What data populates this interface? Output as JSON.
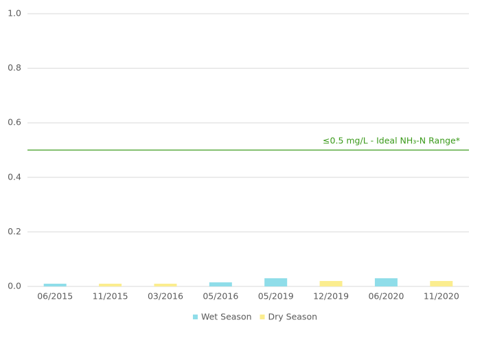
{
  "chart_data": {
    "type": "bar",
    "categories": [
      "06/2015",
      "11/2015",
      "03/2016",
      "05/2016",
      "05/2019",
      "12/2019",
      "06/2020",
      "11/2020"
    ],
    "series": [
      {
        "name": "Wet Season",
        "color": "#8fdde9",
        "values": [
          0.01,
          null,
          null,
          0.015,
          0.03,
          null,
          0.03,
          null
        ]
      },
      {
        "name": "Dry Season",
        "color": "#fbed8f",
        "values": [
          null,
          0.01,
          0.01,
          null,
          null,
          0.02,
          null,
          0.02
        ]
      }
    ],
    "ylim": [
      0,
      1
    ],
    "yticks": [
      {
        "value": 0,
        "label": "0.0"
      },
      0.2,
      0.4,
      0.6,
      0.8,
      {
        "value": 1,
        "label": "1.0"
      }
    ],
    "grid": true,
    "threshold": {
      "value": 0.5,
      "label": "≤0.5 mg/L - Ideal NH₃-N Range*",
      "color": "#3a9a1a"
    },
    "legend": "bottom"
  }
}
